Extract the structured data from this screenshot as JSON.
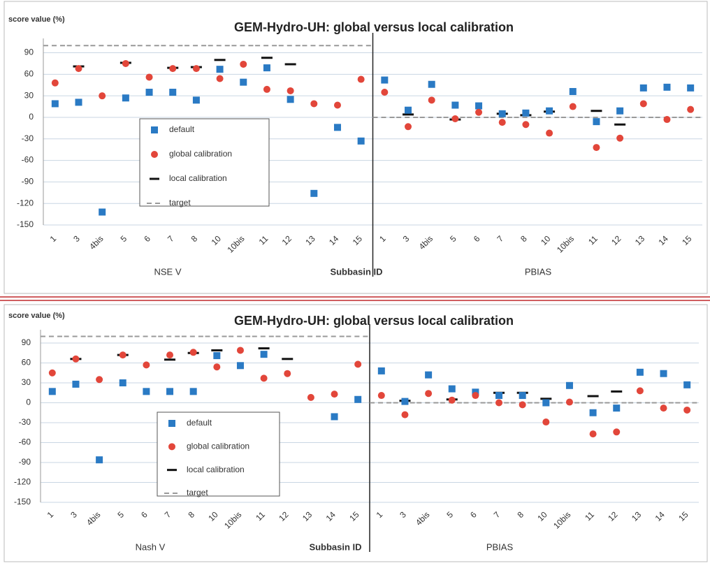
{
  "chart_data": [
    {
      "type": "scatter",
      "title": "GEM-Hydro-UH: global versus local calibration",
      "y_label": "score value (%)",
      "group_labels": [
        "NSE V",
        "Subbasin ID",
        "PBIAS"
      ],
      "categories": [
        "1",
        "3",
        "4bis",
        "5",
        "6",
        "7",
        "8",
        "10",
        "10bis",
        "11",
        "12",
        "13",
        "14",
        "15",
        "1",
        "3",
        "4bis",
        "5",
        "6",
        "7",
        "8",
        "10",
        "10bis",
        "11",
        "12",
        "13",
        "14",
        "15"
      ],
      "ylim": [
        -150,
        110
      ],
      "yticks": [
        -150,
        -120,
        -90,
        -60,
        -30,
        0,
        30,
        60,
        90
      ],
      "grid": true,
      "legend": "left",
      "series": [
        {
          "name": "default",
          "color": "#2a7ac4",
          "marker": "square",
          "values": [
            19,
            21,
            -132,
            27,
            35,
            35,
            24,
            67,
            49,
            69,
            25,
            -106,
            -14,
            -33,
            52,
            10,
            46,
            17,
            16,
            5,
            6,
            9,
            36,
            -6,
            9,
            41,
            42,
            41
          ]
        },
        {
          "name": "global calibration",
          "color": "#e2463a",
          "marker": "circle",
          "values": [
            48,
            68,
            30,
            75,
            56,
            68,
            68,
            54,
            74,
            39,
            37,
            19,
            17,
            53,
            35,
            -13,
            24,
            -2,
            7,
            -7,
            -10,
            -22,
            15,
            -42,
            -29,
            19,
            -3,
            11
          ]
        },
        {
          "name": "local calibration",
          "color": "#111111",
          "marker": "dash",
          "values": [
            null,
            71,
            null,
            76,
            null,
            69,
            70,
            80,
            null,
            83,
            74,
            null,
            null,
            null,
            null,
            4,
            null,
            -3,
            null,
            5,
            3,
            8,
            null,
            9,
            -10,
            null,
            null,
            null
          ]
        },
        {
          "name": "target",
          "color": "#999999",
          "marker": "dashed-line",
          "values": [
            100,
            100,
            100,
            100,
            100,
            100,
            100,
            100,
            100,
            100,
            100,
            100,
            100,
            100,
            0,
            0,
            0,
            0,
            0,
            0,
            0,
            0,
            0,
            0,
            0,
            0,
            0,
            0
          ]
        }
      ]
    },
    {
      "type": "scatter",
      "title": "GEM-Hydro-UH: global versus local calibration",
      "y_label": "score value (%)",
      "group_labels": [
        "Nash V",
        "Subbasin ID",
        "PBIAS"
      ],
      "categories": [
        "1",
        "3",
        "4bis",
        "5",
        "6",
        "7",
        "8",
        "10",
        "10bis",
        "11",
        "12",
        "13",
        "14",
        "15",
        "1",
        "3",
        "4bis",
        "5",
        "6",
        "7",
        "8",
        "10",
        "10bis",
        "11",
        "12",
        "13",
        "14",
        "15"
      ],
      "ylim": [
        -150,
        110
      ],
      "yticks": [
        -150,
        -120,
        -90,
        -60,
        -30,
        0,
        30,
        60,
        90
      ],
      "grid": true,
      "legend": "left",
      "series": [
        {
          "name": "default",
          "color": "#2a7ac4",
          "marker": "square",
          "values": [
            17,
            28,
            -86,
            30,
            17,
            17,
            17,
            71,
            56,
            73,
            null,
            null,
            -21,
            5,
            48,
            2,
            42,
            21,
            16,
            11,
            11,
            0,
            26,
            -15,
            -8,
            46,
            44,
            27
          ]
        },
        {
          "name": "global calibration",
          "color": "#e2463a",
          "marker": "circle",
          "values": [
            45,
            66,
            35,
            72,
            57,
            72,
            76,
            54,
            79,
            37,
            44,
            8,
            13,
            58,
            11,
            -18,
            14,
            4,
            11,
            0,
            -3,
            -29,
            1,
            -47,
            -44,
            18,
            -8,
            -11
          ]
        },
        {
          "name": "local calibration",
          "color": "#111111",
          "marker": "dash",
          "values": [
            null,
            66,
            null,
            72,
            null,
            65,
            75,
            79,
            null,
            82,
            66,
            null,
            null,
            null,
            null,
            3,
            null,
            5,
            null,
            15,
            15,
            6,
            null,
            10,
            17,
            null,
            null,
            null
          ]
        },
        {
          "name": "target",
          "color": "#999999",
          "marker": "dashed-line",
          "values": [
            100,
            100,
            100,
            100,
            100,
            100,
            100,
            100,
            100,
            100,
            100,
            100,
            100,
            100,
            0,
            0,
            0,
            0,
            0,
            0,
            0,
            0,
            0,
            0,
            0,
            0,
            0,
            0
          ]
        }
      ]
    }
  ]
}
